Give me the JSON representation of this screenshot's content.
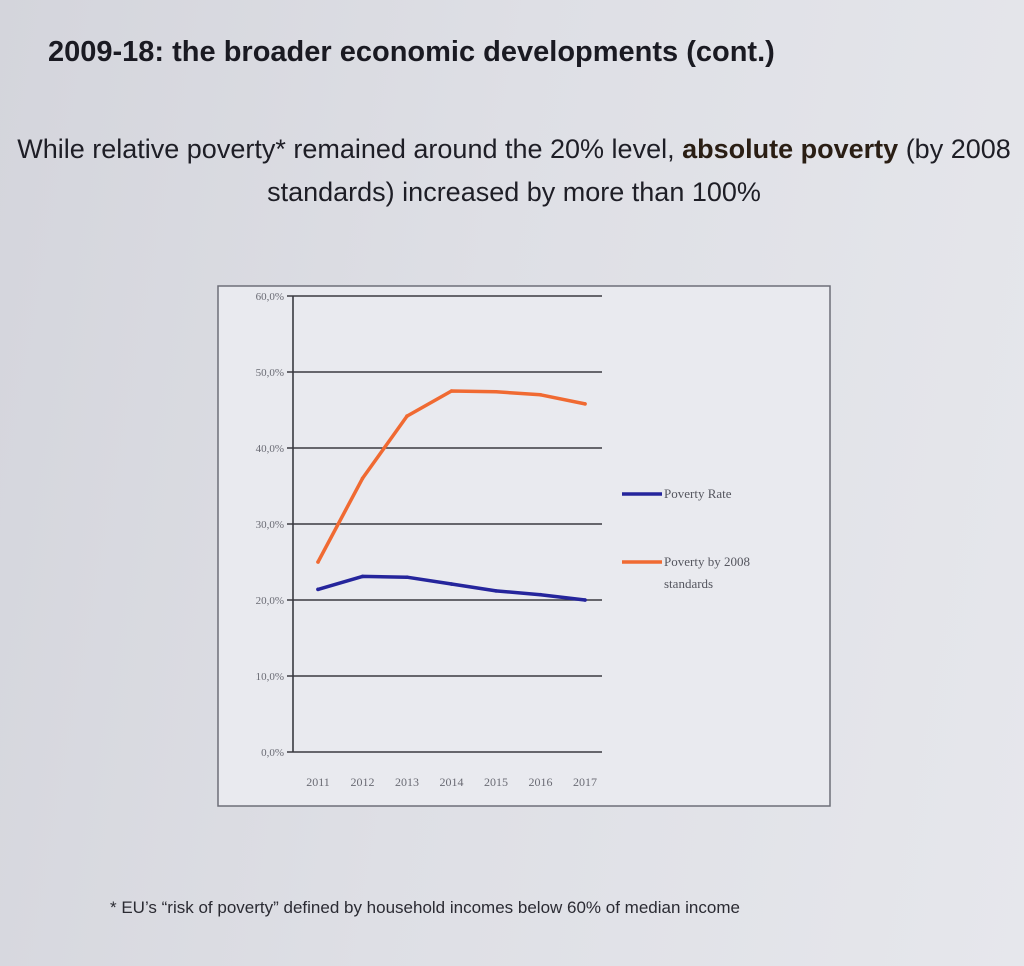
{
  "slide": {
    "title": "2009-18: the broader economic developments (cont.)",
    "subtitle_part1": "While relative poverty* remained around the 20% level,",
    "subtitle_bold": "absolute poverty",
    "subtitle_part2": "(by 2008 standards) increased by more than 100%",
    "footnote": "* EU’s “risk of poverty” defined by household incomes below 60% of median income"
  },
  "chart_data": {
    "type": "line",
    "x": [
      "2011",
      "2012",
      "2013",
      "2014",
      "2015",
      "2016",
      "2017"
    ],
    "series": [
      {
        "name": "Poverty Rate",
        "color": "#25259c",
        "values": [
          21.4,
          23.1,
          23.0,
          22.1,
          21.2,
          20.7,
          20.0
        ]
      },
      {
        "name": "Poverty by 2008 standards",
        "color": "#f06a32",
        "values": [
          25.0,
          36.0,
          44.2,
          47.5,
          47.4,
          47.0,
          45.8
        ]
      }
    ],
    "yticks": [
      "0,0%",
      "10,0%",
      "20,0%",
      "30,0%",
      "40,0%",
      "50,0%",
      "60,0%"
    ],
    "ylim": [
      0,
      60
    ],
    "grid": true,
    "legend": "right"
  }
}
